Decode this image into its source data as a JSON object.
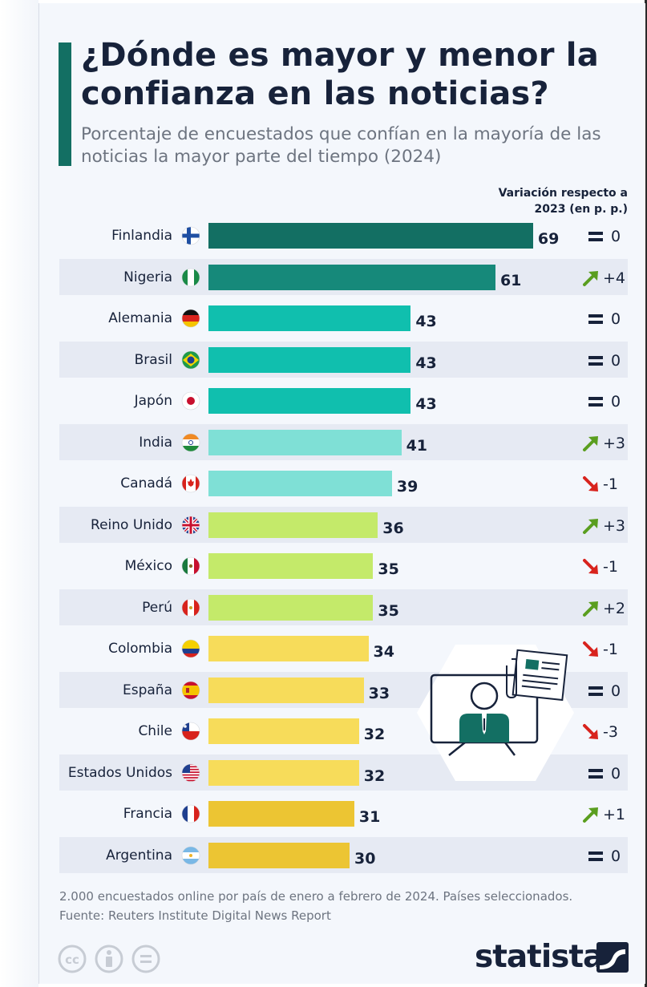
{
  "title": "¿Dónde es mayor y menor la confianza en las noticias?",
  "subtitle": "Porcentaje de encuestados que confían en la mayoría de las noticias la mayor parte del tiempo (2024)",
  "change_header": "Variación respecto a 2023 (en p. p.)",
  "footnote": {
    "line1": "2.000 encuestados online por país de enero a febrero de 2024. Países seleccionados.",
    "line2": "Fuente: Reuters Institute Digital News Report"
  },
  "brand": "statista",
  "license_icons": [
    "cc-icon",
    "attribution-icon",
    "no-derivatives-icon"
  ],
  "chart_data": {
    "type": "bar",
    "orientation": "horizontal",
    "title": "¿Dónde es mayor y menor la confianza en las noticias?",
    "subtitle": "Porcentaje de encuestados que confían en la mayoría de las noticias la mayor parte del tiempo (2024)",
    "xlim": [
      0,
      100
    ],
    "grid": false,
    "categories": [
      "Finlandia",
      "Nigeria",
      "Alemania",
      "Brasil",
      "Japón",
      "India",
      "Canadá",
      "Reino Unido",
      "México",
      "Perú",
      "Colombia",
      "España",
      "Chile",
      "Estados Unidos",
      "Francia",
      "Argentina"
    ],
    "values": [
      69,
      61,
      43,
      43,
      43,
      41,
      39,
      36,
      35,
      35,
      34,
      33,
      32,
      32,
      31,
      30
    ],
    "change_values": [
      0,
      4,
      0,
      0,
      0,
      3,
      -1,
      3,
      -1,
      2,
      -1,
      0,
      -3,
      0,
      1,
      0
    ],
    "change_labels": [
      "0",
      "+4",
      "0",
      "0",
      "0",
      "+3",
      "-1",
      "+3",
      "-1",
      "+2",
      "-1",
      "0",
      "-3",
      "0",
      "+1",
      "0"
    ],
    "bar_colors": [
      "#136f63",
      "#16897a",
      "#10bfae",
      "#10bfae",
      "#10bfae",
      "#7fe0d6",
      "#7fe0d6",
      "#c4ea6a",
      "#c4ea6a",
      "#c4ea6a",
      "#f7dc5a",
      "#f7dc5a",
      "#f7dc5a",
      "#f7dc5a",
      "#ecc533",
      "#ecc533"
    ],
    "flags": [
      "finland-flag-icon",
      "nigeria-flag-icon",
      "germany-flag-icon",
      "brazil-flag-icon",
      "japan-flag-icon",
      "india-flag-icon",
      "canada-flag-icon",
      "uk-flag-icon",
      "mexico-flag-icon",
      "peru-flag-icon",
      "colombia-flag-icon",
      "spain-flag-icon",
      "chile-flag-icon",
      "usa-flag-icon",
      "france-flag-icon",
      "argentina-flag-icon"
    ],
    "colors": {
      "up": "#5a9e1f",
      "down": "#d8231d",
      "same": "#17223a",
      "title_accent": "#136f63"
    }
  }
}
